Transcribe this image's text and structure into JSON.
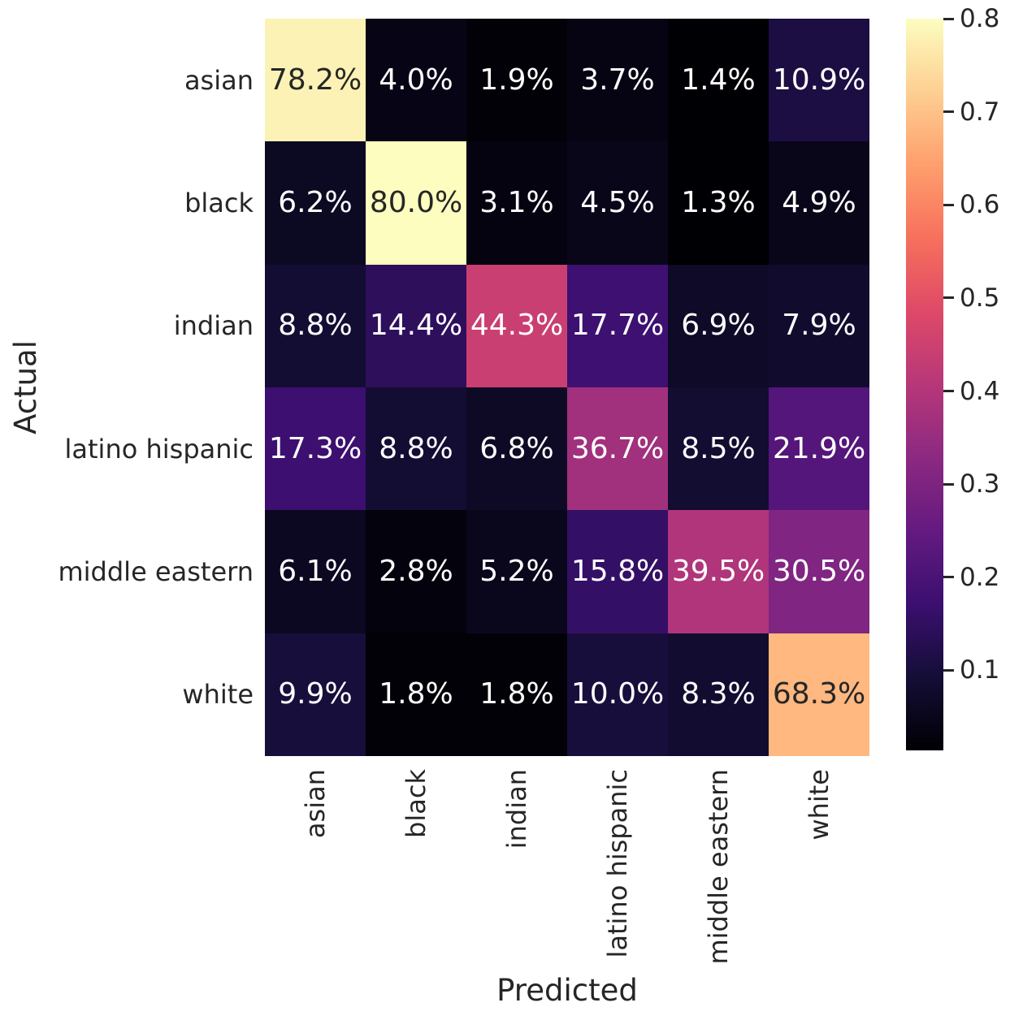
{
  "figure": {
    "background": "#ffffff",
    "text_color": "#262626",
    "annotation_colors": {
      "light": "#ffffff",
      "dark": "#262626"
    }
  },
  "chart_data": {
    "type": "heatmap",
    "title": "",
    "xlabel": "Predicted",
    "ylabel": "Actual",
    "x_categories": [
      "asian",
      "black",
      "indian",
      "latino hispanic",
      "middle eastern",
      "white"
    ],
    "y_categories": [
      "asian",
      "black",
      "indian",
      "latino hispanic",
      "middle eastern",
      "white"
    ],
    "values_percent": [
      [
        78.2,
        4.0,
        1.9,
        3.7,
        1.4,
        10.9
      ],
      [
        6.2,
        80.0,
        3.1,
        4.5,
        1.3,
        4.9
      ],
      [
        8.8,
        14.4,
        44.3,
        17.7,
        6.9,
        7.9
      ],
      [
        17.3,
        8.8,
        6.8,
        36.7,
        8.5,
        21.9
      ],
      [
        6.1,
        2.8,
        5.2,
        15.8,
        39.5,
        30.5
      ],
      [
        9.9,
        1.8,
        1.8,
        10.0,
        8.3,
        68.3
      ]
    ],
    "cell_label_suffix": "%",
    "colormap": {
      "name": "magma",
      "stops": [
        "#000004",
        "#140e36",
        "#3b0f70",
        "#641a80",
        "#8c2981",
        "#b73779",
        "#de4968",
        "#f7705c",
        "#fe9f6d",
        "#fecf92",
        "#fcfdbf"
      ]
    },
    "color_scale": {
      "vmin": 0.014,
      "vmax": 0.8
    },
    "colorbar": {
      "position": "right",
      "tick_values": [
        0.8,
        0.7,
        0.6,
        0.5,
        0.4,
        0.3,
        0.2,
        0.1
      ]
    },
    "grid": false,
    "legend": "colorbar-right"
  }
}
